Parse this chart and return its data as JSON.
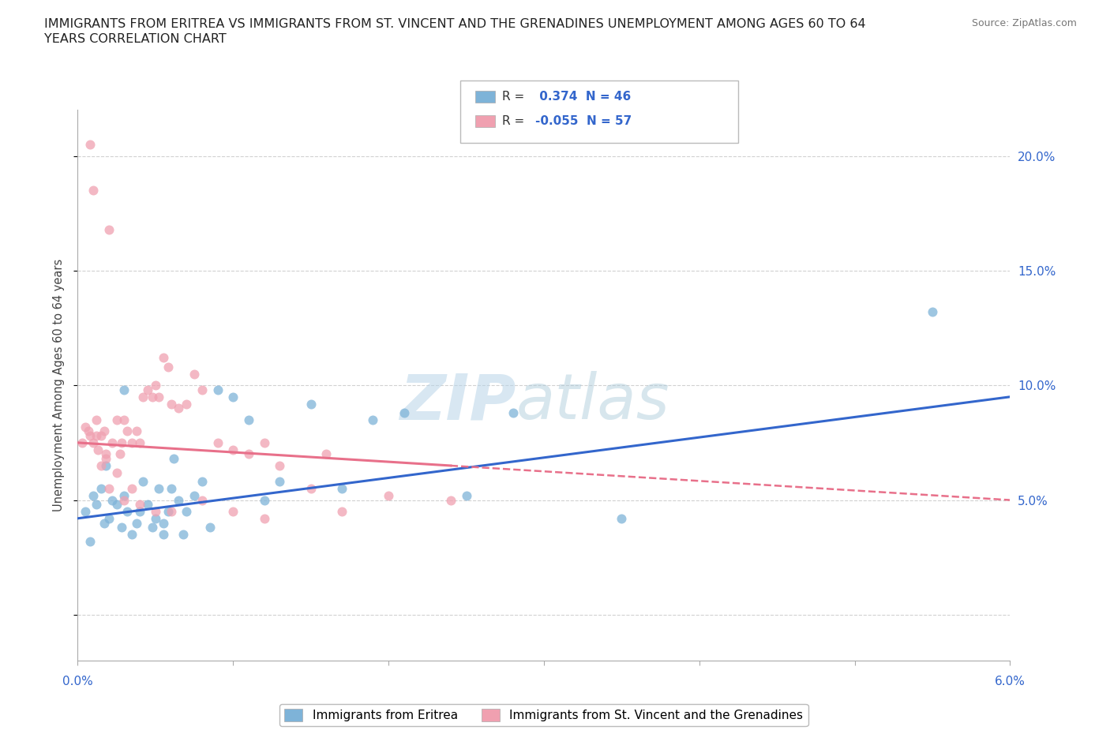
{
  "title_line1": "IMMIGRANTS FROM ERITREA VS IMMIGRANTS FROM ST. VINCENT AND THE GRENADINES UNEMPLOYMENT AMONG AGES 60 TO 64",
  "title_line2": "YEARS CORRELATION CHART",
  "source": "Source: ZipAtlas.com",
  "ylabel": "Unemployment Among Ages 60 to 64 years",
  "xlim": [
    0.0,
    6.0
  ],
  "ylim": [
    -2.0,
    22.0
  ],
  "ytick_vals": [
    0,
    5,
    10,
    15,
    20
  ],
  "ytick_labels": [
    "",
    "5.0%",
    "10.0%",
    "15.0%",
    "20.0%"
  ],
  "blue_color": "#7EB3D8",
  "pink_color": "#F0A0B0",
  "blue_line_color": "#3366CC",
  "pink_line_color": "#E8708A",
  "tick_label_color": "#3366CC",
  "R_blue": "0.374",
  "N_blue": 46,
  "R_pink": "-0.055",
  "N_pink": 57,
  "blue_label": "Immigrants from Eritrea",
  "pink_label": "Immigrants from St. Vincent and the Grenadines",
  "blue_scatter_x": [
    0.05,
    0.08,
    0.1,
    0.12,
    0.15,
    0.17,
    0.18,
    0.2,
    0.22,
    0.25,
    0.28,
    0.3,
    0.32,
    0.35,
    0.38,
    0.4,
    0.42,
    0.45,
    0.48,
    0.5,
    0.52,
    0.55,
    0.58,
    0.6,
    0.62,
    0.65,
    0.7,
    0.75,
    0.8,
    0.9,
    1.0,
    1.1,
    1.3,
    1.5,
    1.7,
    1.9,
    2.1,
    2.5,
    2.8,
    3.5,
    5.5,
    0.3,
    0.55,
    0.68,
    0.85,
    1.2
  ],
  "blue_scatter_y": [
    4.5,
    3.2,
    5.2,
    4.8,
    5.5,
    4.0,
    6.5,
    4.2,
    5.0,
    4.8,
    3.8,
    5.2,
    4.5,
    3.5,
    4.0,
    4.5,
    5.8,
    4.8,
    3.8,
    4.2,
    5.5,
    3.5,
    4.5,
    5.5,
    6.8,
    5.0,
    4.5,
    5.2,
    5.8,
    9.8,
    9.5,
    8.5,
    5.8,
    9.2,
    5.5,
    8.5,
    8.8,
    5.2,
    8.8,
    4.2,
    13.2,
    9.8,
    4.0,
    3.5,
    3.8,
    5.0
  ],
  "pink_scatter_x": [
    0.03,
    0.05,
    0.07,
    0.08,
    0.1,
    0.12,
    0.13,
    0.15,
    0.17,
    0.18,
    0.2,
    0.22,
    0.25,
    0.27,
    0.28,
    0.3,
    0.32,
    0.35,
    0.38,
    0.4,
    0.42,
    0.45,
    0.48,
    0.5,
    0.52,
    0.55,
    0.58,
    0.6,
    0.65,
    0.7,
    0.75,
    0.8,
    0.9,
    1.0,
    1.1,
    1.2,
    1.3,
    1.5,
    1.7,
    2.0,
    2.4,
    0.08,
    0.1,
    0.12,
    0.15,
    0.18,
    0.2,
    0.25,
    0.3,
    0.35,
    0.4,
    0.5,
    0.6,
    0.8,
    1.0,
    1.2,
    1.6
  ],
  "pink_scatter_y": [
    7.5,
    8.2,
    8.0,
    7.8,
    7.5,
    8.5,
    7.2,
    7.8,
    8.0,
    7.0,
    16.8,
    7.5,
    8.5,
    7.0,
    7.5,
    8.5,
    8.0,
    7.5,
    8.0,
    7.5,
    9.5,
    9.8,
    9.5,
    10.0,
    9.5,
    11.2,
    10.8,
    9.2,
    9.0,
    9.2,
    10.5,
    9.8,
    7.5,
    7.2,
    7.0,
    7.5,
    6.5,
    5.5,
    4.5,
    5.2,
    5.0,
    20.5,
    18.5,
    7.8,
    6.5,
    6.8,
    5.5,
    6.2,
    5.0,
    5.5,
    4.8,
    4.5,
    4.5,
    5.0,
    4.5,
    4.2,
    7.0
  ],
  "blue_trend_x0": 0.0,
  "blue_trend_x1": 6.0,
  "blue_trend_y0": 4.2,
  "blue_trend_y1": 9.5,
  "pink_solid_x0": 0.0,
  "pink_solid_x1": 2.4,
  "pink_solid_y0": 7.5,
  "pink_solid_y1": 6.5,
  "pink_dash_x0": 2.4,
  "pink_dash_x1": 6.0,
  "pink_dash_y0": 6.5,
  "pink_dash_y1": 5.0,
  "watermark_zip": "ZIP",
  "watermark_atlas": "atlas",
  "background_color": "#FFFFFF",
  "grid_color": "#CCCCCC",
  "xtick_positions": [
    0.0,
    1.0,
    2.0,
    3.0,
    4.0,
    5.0,
    6.0
  ]
}
